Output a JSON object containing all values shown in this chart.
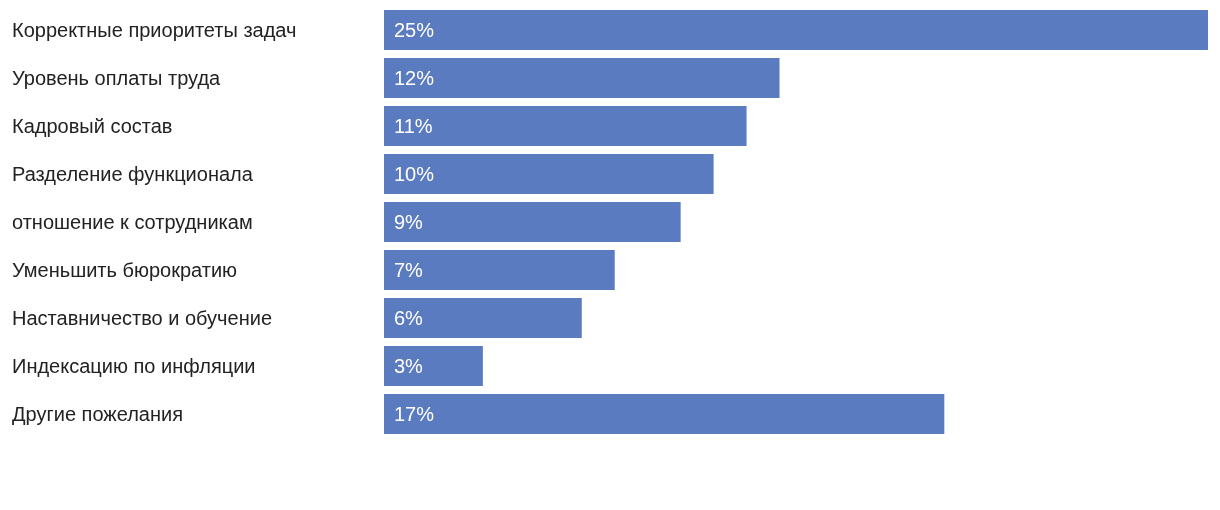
{
  "chart_data": {
    "type": "bar",
    "orientation": "horizontal",
    "categories": [
      "Корректные приоритеты задач",
      "Уровень оплаты труда",
      "Кадровый состав",
      "Разделение функционала",
      "отношение к сотрудникам",
      "Уменьшить бюрократию",
      "Наставничество и обучение",
      "Индексацию по инфляции",
      "Другие пожелания"
    ],
    "values": [
      25,
      12,
      11,
      10,
      9,
      7,
      6,
      3,
      17
    ],
    "value_labels": [
      "25%",
      "12%",
      "11%",
      "10%",
      "9%",
      "7%",
      "6%",
      "3%",
      "17%"
    ],
    "color": "#5b7bc1"
  }
}
